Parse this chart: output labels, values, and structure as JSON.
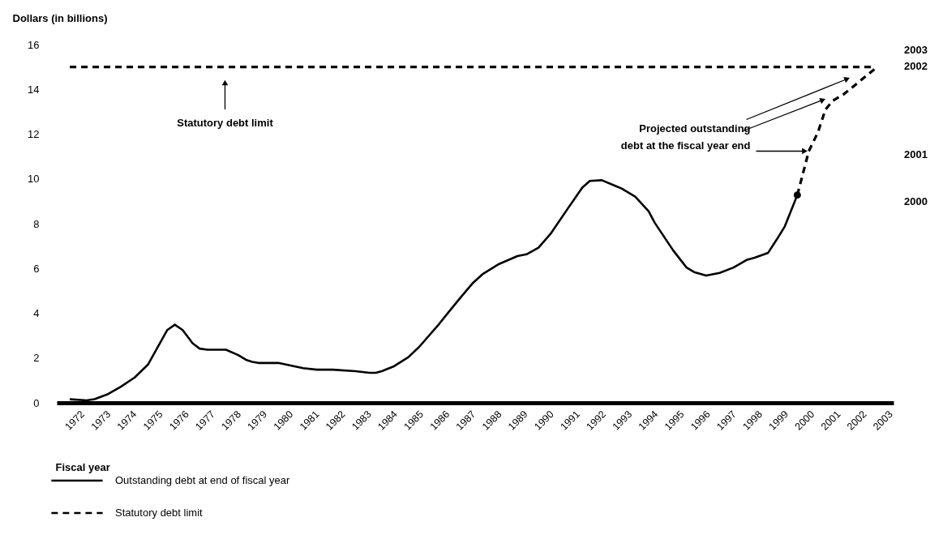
{
  "chart_data": {
    "type": "line",
    "xlabel": "Fiscal year",
    "ylabel": "Dollars (in billions)",
    "xlim": [
      1971,
      2003.1
    ],
    "ylim": [
      0,
      16
    ],
    "xticks": [
      1972,
      1973,
      1974,
      1975,
      1976,
      1977,
      1978,
      1979,
      1980,
      1981,
      1982,
      1983,
      1984,
      1985,
      1986,
      1987,
      1988,
      1989,
      1990,
      1991,
      1992,
      1993,
      1994,
      1995,
      1996,
      1997,
      1998,
      1999,
      2000,
      2001,
      2002,
      2003
    ],
    "yticks": [
      0,
      2,
      4,
      6,
      8,
      10,
      12,
      14,
      16
    ],
    "grid": false,
    "legend": "bottom left",
    "series": [
      {
        "name": "Outstanding debt at end of fiscal year",
        "color": "#000000",
        "line_style": "solid",
        "x": [
          1971.5,
          1972.15,
          1972.45,
          1972.93,
          1973.46,
          1973.99,
          1974.5,
          1975.24,
          1975.53,
          1975.83,
          1976.21,
          1976.48,
          1976.78,
          1977.49,
          1977.96,
          1978.26,
          1978.5,
          1978.73,
          1979.5,
          1980.45,
          1980.98,
          1981.58,
          1982.46,
          1983.0,
          1983.24,
          1983.47,
          1983.95,
          1984.48,
          1984.89,
          1985.66,
          1986.02,
          1986.49,
          1986.97,
          1987.33,
          1987.97,
          1988.67,
          1989.02,
          1989.48,
          1989.94,
          1990.63,
          1991.16,
          1991.45,
          1991.91,
          1992.67,
          1993.19,
          1993.71,
          1993.94,
          1994.64,
          1995.16,
          1995.45,
          1995.91,
          1996.43,
          1996.96,
          1997.46,
          1997.77,
          1998.29,
          1998.63,
          1998.93,
          1999.41
        ],
        "values": [
          0.16,
          0.11,
          0.16,
          0.37,
          0.72,
          1.13,
          1.71,
          3.25,
          3.49,
          3.25,
          2.66,
          2.42,
          2.37,
          2.37,
          2.13,
          1.92,
          1.83,
          1.78,
          1.78,
          1.55,
          1.48,
          1.48,
          1.41,
          1.34,
          1.34,
          1.41,
          1.64,
          2.03,
          2.48,
          3.51,
          4.03,
          4.7,
          5.36,
          5.74,
          6.2,
          6.55,
          6.63,
          6.93,
          7.54,
          8.72,
          9.61,
          9.91,
          9.94,
          9.57,
          9.21,
          8.55,
          8.04,
          6.82,
          6.04,
          5.84,
          5.68,
          5.8,
          6.04,
          6.38,
          6.48,
          6.7,
          7.31,
          7.88,
          9.28
        ]
      },
      {
        "color": "#000000",
        "line_style": "dashed",
        "x": [
          1999.41,
          1999.85,
          2000.2,
          2000.49,
          2000.78,
          2001.19,
          2002.4
        ],
        "values": [
          9.28,
          11.24,
          12.08,
          13.1,
          13.5,
          13.78,
          14.93
        ]
      },
      {
        "type": "scatter",
        "color": "#000000",
        "marker": "circle",
        "x": [
          1999.41
        ],
        "values": [
          9.28
        ]
      },
      {
        "name": "Statutory debt limit",
        "color": "#000000",
        "line_style": "dashed",
        "x": [
          1971.5,
          2002.3
        ],
        "values": [
          15,
          15
        ]
      }
    ],
    "annotations": [
      "Statutory debt limit",
      {
        "text": "Projected outstanding\ndebt at the fiscal year end",
        "x": 1999.85,
        "y": 11.24
      },
      "2003",
      "2002",
      "2001",
      "2000"
    ]
  }
}
